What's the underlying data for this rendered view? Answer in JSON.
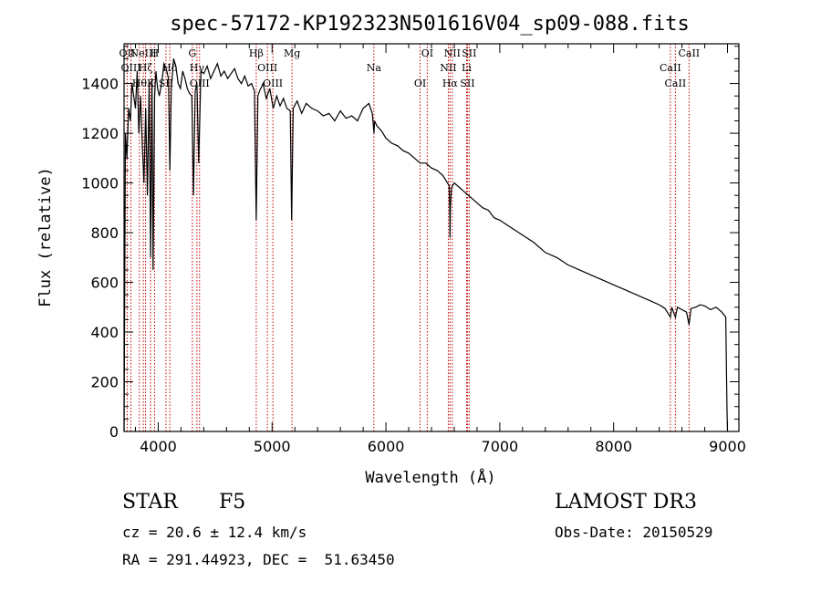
{
  "chart_data": {
    "type": "line",
    "title": "spec-57172-KP192323N501616V04_sp09-088.fits",
    "xlabel": "Wavelength (Å)",
    "ylabel": "Flux (relative)",
    "xlim": [
      3700,
      9100
    ],
    "ylim": [
      0,
      1560
    ],
    "x_ticks": [
      4000,
      5000,
      6000,
      7000,
      8000,
      9000
    ],
    "y_ticks": [
      0,
      200,
      400,
      600,
      800,
      1000,
      1200,
      1400
    ],
    "series": [
      {
        "name": "spectrum",
        "x": [
          3700,
          3712,
          3725,
          3740,
          3755,
          3770,
          3785,
          3800,
          3815,
          3830,
          3845,
          3860,
          3875,
          3890,
          3905,
          3920,
          3933,
          3945,
          3955,
          3968,
          3980,
          3995,
          4010,
          4030,
          4050,
          4070,
          4090,
          4102,
          4115,
          4135,
          4155,
          4175,
          4195,
          4215,
          4235,
          4255,
          4275,
          4295,
          4310,
          4325,
          4340,
          4355,
          4375,
          4400,
          4430,
          4460,
          4490,
          4520,
          4550,
          4580,
          4610,
          4640,
          4670,
          4700,
          4730,
          4760,
          4790,
          4820,
          4845,
          4861,
          4875,
          4890,
          4920,
          4950,
          4980,
          5010,
          5040,
          5070,
          5100,
          5130,
          5160,
          5172,
          5185,
          5220,
          5260,
          5300,
          5350,
          5400,
          5450,
          5500,
          5550,
          5600,
          5650,
          5700,
          5750,
          5800,
          5850,
          5880,
          5895,
          5900,
          5920,
          5960,
          6000,
          6050,
          6100,
          6150,
          6200,
          6250,
          6300,
          6350,
          6400,
          6450,
          6500,
          6540,
          6555,
          6560,
          6563,
          6566,
          6575,
          6600,
          6650,
          6700,
          6750,
          6800,
          6850,
          6900,
          6950,
          7000,
          7100,
          7200,
          7300,
          7400,
          7500,
          7600,
          7700,
          7800,
          7900,
          8000,
          8100,
          8200,
          8300,
          8400,
          8450,
          8498,
          8510,
          8542,
          8560,
          8600,
          8640,
          8662,
          8680,
          8720,
          8760,
          8800,
          8850,
          8900,
          8950,
          8985,
          8995,
          9000
        ],
        "y": [
          0,
          1200,
          1100,
          1300,
          1250,
          1400,
          1350,
          1300,
          1450,
          1200,
          1350,
          1150,
          1000,
          1300,
          950,
          1400,
          700,
          1420,
          650,
          1350,
          1450,
          1380,
          1350,
          1400,
          1480,
          1460,
          1420,
          1050,
          1380,
          1500,
          1470,
          1400,
          1380,
          1450,
          1420,
          1380,
          1360,
          1350,
          950,
          1370,
          1400,
          1080,
          1450,
          1440,
          1470,
          1420,
          1450,
          1480,
          1430,
          1450,
          1420,
          1440,
          1460,
          1420,
          1400,
          1430,
          1390,
          1400,
          1370,
          850,
          1350,
          1370,
          1400,
          1340,
          1380,
          1300,
          1350,
          1310,
          1340,
          1300,
          1290,
          850,
          1300,
          1330,
          1280,
          1320,
          1300,
          1290,
          1270,
          1280,
          1250,
          1290,
          1260,
          1270,
          1250,
          1300,
          1320,
          1280,
          1200,
          1250,
          1230,
          1210,
          1180,
          1160,
          1150,
          1130,
          1120,
          1100,
          1080,
          1080,
          1060,
          1050,
          1030,
          1000,
          990,
          900,
          780,
          900,
          980,
          1000,
          980,
          960,
          940,
          920,
          900,
          890,
          860,
          850,
          820,
          790,
          760,
          720,
          700,
          670,
          650,
          630,
          610,
          590,
          570,
          550,
          530,
          510,
          495,
          460,
          500,
          460,
          500,
          490,
          480,
          430,
          495,
          500,
          510,
          505,
          490,
          500,
          480,
          460,
          100,
          0
        ]
      }
    ],
    "line_markers": [
      {
        "wavelength": 3727,
        "label": "OII"
      },
      {
        "wavelength": 3760,
        "label": "OIII"
      },
      {
        "wavelength": 3835,
        "label": "Hθ"
      },
      {
        "wavelength": 3869,
        "label": "NeIII"
      },
      {
        "wavelength": 3889,
        "label": "Hζ"
      },
      {
        "wavelength": 3933,
        "label": "K"
      },
      {
        "wavelength": 3968,
        "label": "H"
      },
      {
        "wavelength": 4102,
        "label": "Hδ"
      },
      {
        "wavelength": 4068,
        "label": "SII"
      },
      {
        "wavelength": 4300,
        "label": "G"
      },
      {
        "wavelength": 4340,
        "label": "Hγ"
      },
      {
        "wavelength": 4363,
        "label": "OIII"
      },
      {
        "wavelength": 4861,
        "label": "Hβ"
      },
      {
        "wavelength": 4959,
        "label": "OIII"
      },
      {
        "wavelength": 5007,
        "label": "OIII"
      },
      {
        "wavelength": 5175,
        "label": "Mg"
      },
      {
        "wavelength": 5894,
        "label": "Na"
      },
      {
        "wavelength": 6300,
        "label": "OI"
      },
      {
        "wavelength": 6363,
        "label": "OI"
      },
      {
        "wavelength": 6548,
        "label": "NII"
      },
      {
        "wavelength": 6563,
        "label": "Hα"
      },
      {
        "wavelength": 6583,
        "label": "NII"
      },
      {
        "wavelength": 6708,
        "label": "Li"
      },
      {
        "wavelength": 6716,
        "label": "SII"
      },
      {
        "wavelength": 6731,
        "label": "SII"
      },
      {
        "wavelength": 8498,
        "label": "CaII"
      },
      {
        "wavelength": 8542,
        "label": "CaII"
      },
      {
        "wavelength": 8662,
        "label": "CaII"
      }
    ]
  },
  "info": {
    "object_class": "STAR",
    "subclass": "F5",
    "survey": "LAMOST DR3",
    "cz": "cz = 20.6 ± 12.4 km/s",
    "obs_date": "Obs-Date: 20150529",
    "coords": "RA = 291.44923, DEC =  51.63450"
  },
  "colors": {
    "spectrum": "#000000",
    "line_marker": "#c00000",
    "axes": "#000000"
  }
}
